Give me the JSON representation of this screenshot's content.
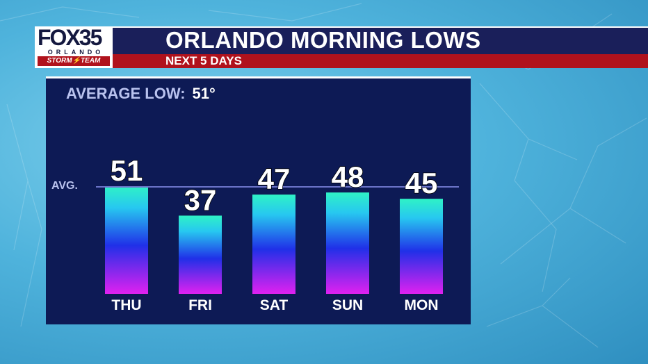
{
  "header": {
    "logo_station": "FOX35",
    "logo_city": "ORLANDO",
    "logo_team": "STORM⚡TEAM",
    "title": "ORLANDO MORNING LOWS",
    "subtitle": "NEXT 5 DAYS"
  },
  "average": {
    "label": "AVERAGE LOW:",
    "value_text": "51°",
    "line_label": "AVG."
  },
  "colors": {
    "panel": "#0d1a55",
    "header": "#1a1f5a",
    "subheader": "#b0121c",
    "bar_top": "#2ff2c6",
    "bar_mid": "#2030e8",
    "bar_bottom": "#e021f0",
    "avg_line": "#6b74c9"
  },
  "chart_data": {
    "type": "bar",
    "categories": [
      "THU",
      "FRI",
      "SAT",
      "SUN",
      "MON"
    ],
    "values": [
      51,
      37,
      47,
      48,
      45
    ],
    "average": 51,
    "title": "ORLANDO MORNING LOWS",
    "subtitle": "NEXT 5 DAYS",
    "xlabel": "",
    "ylabel": ""
  }
}
